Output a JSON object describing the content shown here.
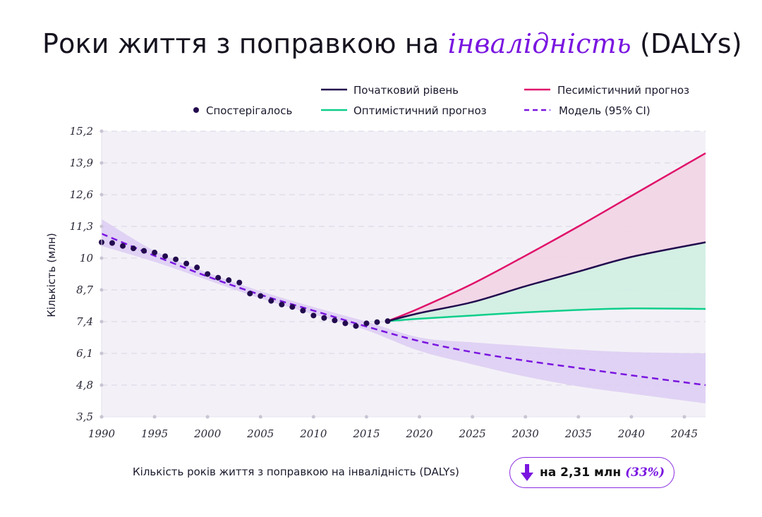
{
  "title": {
    "prefix": "Роки життя з поправкою на ",
    "accent": "інвалідність",
    "suffix": " (DALYs)"
  },
  "legend": {
    "baseline": "Початковий рівень",
    "pessimistic": "Песимістичний прогноз",
    "observed": "Спостерігалось",
    "optimistic": "Оптимістичний прогноз",
    "model": "Модель (95% CI)"
  },
  "footer": {
    "label": "Кількість років життя з поправкою на інвалідність (DALYs)",
    "badge_value": "на 2,31 млн",
    "badge_pct": "(33%)"
  },
  "colors": {
    "baseline": "#220a4e",
    "pessimistic": "#e0126a",
    "optimistic": "#0ccf8a",
    "model": "#7a16e0",
    "observed": "#220a4e",
    "plot_bg": "#f3f1f7",
    "model_band": "#dccdf3",
    "pess_band": "#f2d4e4",
    "opt_band": "#d2eee3"
  },
  "chart_data": {
    "type": "line",
    "ylabel": "Кількість (млн)",
    "xlabel": "",
    "xlim": [
      1990,
      2047
    ],
    "ylim": [
      3.5,
      15.2
    ],
    "x_ticks": [
      1990,
      1995,
      2000,
      2005,
      2010,
      2015,
      2020,
      2025,
      2030,
      2035,
      2040,
      2045
    ],
    "x_tick_labels": [
      "1990",
      "1995",
      "2000",
      "2005",
      "2010",
      "2015",
      "2020",
      "2025",
      "2030",
      "2035",
      "2040",
      "2045"
    ],
    "y_ticks": [
      3.5,
      4.8,
      6.1,
      7.4,
      8.7,
      10,
      11.3,
      12.6,
      13.9,
      15.2
    ],
    "y_tick_labels": [
      "3,5",
      "4,8",
      "6,1",
      "7,4",
      "8,7",
      "10",
      "11,3",
      "12,6",
      "13,9",
      "15,2"
    ],
    "grid": true,
    "legend_position": "top-right",
    "observed": {
      "x": [
        1990,
        1991,
        1992,
        1993,
        1994,
        1995,
        1996,
        1997,
        1998,
        1999,
        2000,
        2001,
        2002,
        2003,
        2004,
        2005,
        2006,
        2007,
        2008,
        2009,
        2010,
        2011,
        2012,
        2013,
        2014,
        2015,
        2016,
        2017
      ],
      "y": [
        10.65,
        10.62,
        10.5,
        10.4,
        10.3,
        10.23,
        10.08,
        9.95,
        9.78,
        9.62,
        9.35,
        9.2,
        9.1,
        9.0,
        8.55,
        8.45,
        8.25,
        8.1,
        8.0,
        7.85,
        7.65,
        7.55,
        7.45,
        7.33,
        7.22,
        7.33,
        7.38,
        7.42
      ]
    },
    "model": {
      "x": [
        1990,
        1995,
        2000,
        2005,
        2010,
        2015,
        2020,
        2025,
        2030,
        2035,
        2040,
        2047
      ],
      "y": [
        11.0,
        10.1,
        9.25,
        8.5,
        7.85,
        7.2,
        6.6,
        6.15,
        5.8,
        5.5,
        5.2,
        4.8
      ],
      "lower": [
        10.5,
        9.85,
        9.1,
        8.35,
        7.7,
        7.05,
        6.2,
        5.65,
        5.15,
        4.75,
        4.45,
        4.05
      ],
      "upper": [
        11.6,
        10.3,
        9.4,
        8.65,
        8.0,
        7.4,
        6.75,
        6.55,
        6.4,
        6.25,
        6.15,
        6.1
      ]
    },
    "series": [
      {
        "name": "Початковий рівень",
        "x": [
          2017,
          2020,
          2025,
          2030,
          2035,
          2040,
          2047
        ],
        "y": [
          7.42,
          7.75,
          8.2,
          8.85,
          9.45,
          10.05,
          10.65
        ]
      },
      {
        "name": "Песимістичний прогноз",
        "x": [
          2017,
          2020,
          2025,
          2030,
          2035,
          2040,
          2047
        ],
        "y": [
          7.42,
          7.95,
          8.95,
          10.1,
          11.3,
          12.55,
          14.3
        ]
      },
      {
        "name": "Оптимістичний прогноз",
        "x": [
          2017,
          2020,
          2025,
          2030,
          2035,
          2040,
          2047
        ],
        "y": [
          7.42,
          7.52,
          7.65,
          7.78,
          7.88,
          7.94,
          7.92
        ]
      }
    ]
  }
}
